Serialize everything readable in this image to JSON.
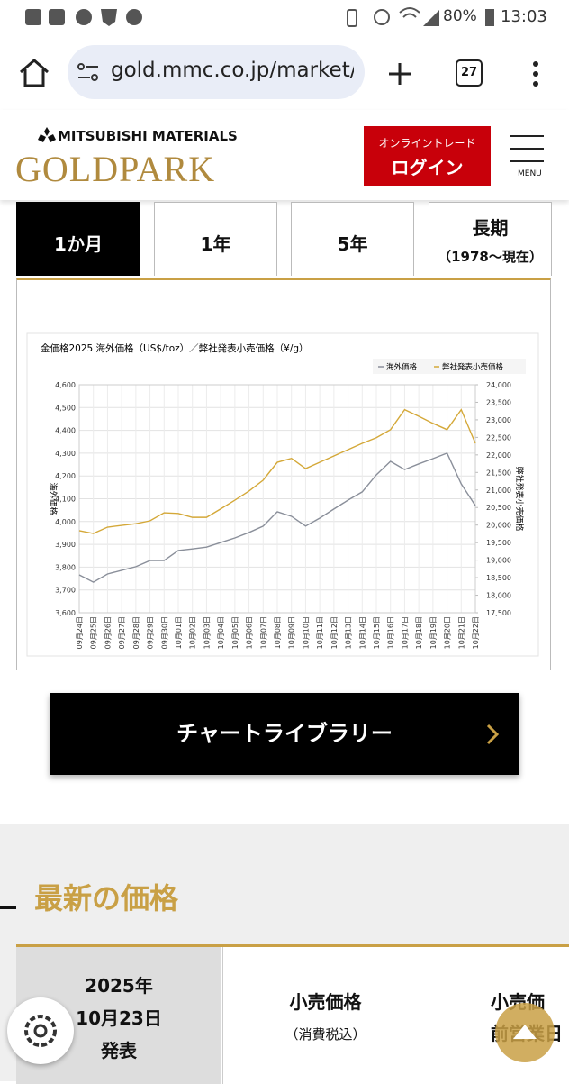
{
  "status_bar": {
    "battery": "80%",
    "time": "13:03"
  },
  "browser": {
    "url": "gold.mmc.co.jp/market/g",
    "tab_count": "27"
  },
  "header": {
    "brand": "MITSUBISHI MATERIALS",
    "logo": "GOLDPARK",
    "trade_label": "オンライントレード",
    "login": "ログイン",
    "menu": "MENU"
  },
  "tabs": [
    {
      "label": "1か月"
    },
    {
      "label": "1年"
    },
    {
      "label": "5年"
    },
    {
      "label": "長期",
      "sub": "（1978～現在）"
    }
  ],
  "chart_data": {
    "type": "line",
    "title": "金価格2025 海外価格（US$/toz）／弊社発表小売価格（¥/g）",
    "ylabel": "海外価格",
    "y2label": "弊社発表小売価格",
    "categories": [
      "09月24日",
      "09月25日",
      "09月26日",
      "09月27日",
      "09月28日",
      "09月29日",
      "09月30日",
      "10月01日",
      "10月02日",
      "10月03日",
      "10月04日",
      "10月05日",
      "10月06日",
      "10月07日",
      "10月08日",
      "10月09日",
      "10月10日",
      "10月11日",
      "10月12日",
      "10月13日",
      "10月14日",
      "10月15日",
      "10月16日",
      "10月17日",
      "10月18日",
      "10月19日",
      "10月20日",
      "10月21日",
      "10月22日"
    ],
    "series": [
      {
        "name": "海外価格",
        "color": "#8a8f9a",
        "values": [
          3766,
          3734,
          3770,
          3786,
          3802,
          3829,
          3829,
          3873,
          3880,
          3888,
          3908,
          3928,
          3952,
          3980,
          4043,
          4023,
          3980,
          4015,
          4055,
          4094,
          4130,
          4205,
          4264,
          4228,
          4253,
          4276,
          4300,
          4165,
          4070
        ]
      },
      {
        "name": "弊社発表小売価格",
        "color": "#d4a838",
        "axis": "y2",
        "values": [
          19840,
          19760,
          19940,
          19990,
          20040,
          20120,
          20350,
          20330,
          20220,
          20220,
          20460,
          20710,
          20970,
          21280,
          21790,
          21900,
          21610,
          21790,
          21970,
          22150,
          22330,
          22490,
          22720,
          23290,
          23100,
          22900,
          22720,
          23290,
          22330
        ]
      }
    ],
    "ylim": [
      3600,
      4600
    ],
    "yticks": [
      {
        "value": 3600,
        "label": "3,600"
      },
      {
        "value": 3700,
        "label": "3,700"
      },
      {
        "value": 3800,
        "label": "3,800"
      },
      {
        "value": 3900,
        "label": "3,900"
      },
      {
        "value": 4000,
        "label": "4,000"
      },
      {
        "value": 4100,
        "label": "4,100"
      },
      {
        "value": 4200,
        "label": "4,200"
      },
      {
        "value": 4300,
        "label": "4,300"
      },
      {
        "value": 4400,
        "label": "4,400"
      },
      {
        "value": 4500,
        "label": "4,500"
      },
      {
        "value": 4600,
        "label": "4,600"
      }
    ],
    "y2lim": [
      17500,
      24000
    ],
    "y2ticks": [
      {
        "value": 17500,
        "label": "17,500"
      },
      {
        "value": 18000,
        "label": "18,000"
      },
      {
        "value": 18500,
        "label": "18,500"
      },
      {
        "value": 19000,
        "label": "19,000"
      },
      {
        "value": 19500,
        "label": "19,500"
      },
      {
        "value": 20000,
        "label": "20,000"
      },
      {
        "value": 20500,
        "label": "20,500"
      },
      {
        "value": 21000,
        "label": "21,000"
      },
      {
        "value": 21500,
        "label": "21,500"
      },
      {
        "value": 22000,
        "label": "22,000"
      },
      {
        "value": 22500,
        "label": "22,500"
      },
      {
        "value": 23000,
        "label": "23,000"
      },
      {
        "value": 23500,
        "label": "23,500"
      },
      {
        "value": 24000,
        "label": "24,000"
      }
    ],
    "grid": true,
    "legend": "top-right"
  },
  "library_button": "チャートライブラリー",
  "latest": {
    "title": "最新の価格",
    "date_cell": {
      "year": "2025年",
      "date": "10月23日",
      "note": "発表"
    },
    "retail": {
      "label": "小売価格",
      "sub": "（消費税込）"
    },
    "retail2": {
      "label": "小売価",
      "sub": "前営業日"
    }
  }
}
